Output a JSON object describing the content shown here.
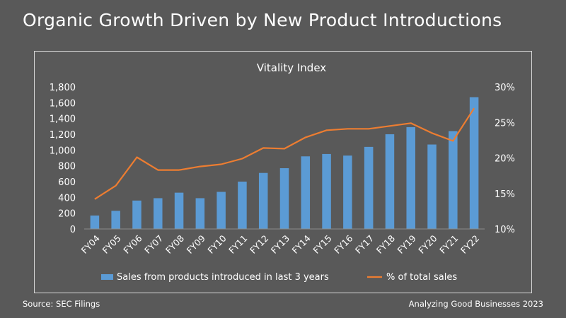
{
  "slide_title": "Organic Growth Driven by New Product Introductions",
  "footer": {
    "source": "Source: SEC Filings",
    "credit": "Analyzing Good Businesses 2023"
  },
  "colors": {
    "background": "#595959",
    "bar": "#5b9bd5",
    "line": "#ed7d31",
    "text": "#ffffff",
    "gridline": "#7f7f7f"
  },
  "chart_data": {
    "type": "bar",
    "title": "Vitality Index",
    "categories": [
      "FY04",
      "FY05",
      "FY06",
      "FY07",
      "FY08",
      "FY09",
      "FY10",
      "FY11",
      "FY12",
      "FY13",
      "FY14",
      "FY15",
      "FY16",
      "FY17",
      "FY18",
      "FY19",
      "FY20",
      "FY21",
      "FY22"
    ],
    "series": [
      {
        "name": "Sales from products introduced in last 3 years",
        "type": "bar",
        "axis": "left",
        "values": [
          170,
          230,
          360,
          390,
          460,
          390,
          470,
          600,
          710,
          770,
          920,
          950,
          930,
          1040,
          1200,
          1290,
          1070,
          1240,
          1670
        ]
      },
      {
        "name": "% of total sales",
        "type": "line",
        "axis": "right",
        "values": [
          14.2,
          16.1,
          20.1,
          18.3,
          18.3,
          18.8,
          19.1,
          19.9,
          21.4,
          21.3,
          22.9,
          23.9,
          24.1,
          24.1,
          24.5,
          24.9,
          23.5,
          22.4,
          27.0
        ]
      }
    ],
    "y_left": {
      "ylim": [
        0,
        1800
      ],
      "ticks": [
        "0",
        "200",
        "400",
        "600",
        "800",
        "1,000",
        "1,200",
        "1,400",
        "1,600",
        "1,800"
      ]
    },
    "y_right": {
      "ylim": [
        10,
        30
      ],
      "ticks": [
        "10%",
        "15%",
        "20%",
        "25%",
        "30%"
      ]
    },
    "grid": false,
    "legend_position": "bottom"
  }
}
